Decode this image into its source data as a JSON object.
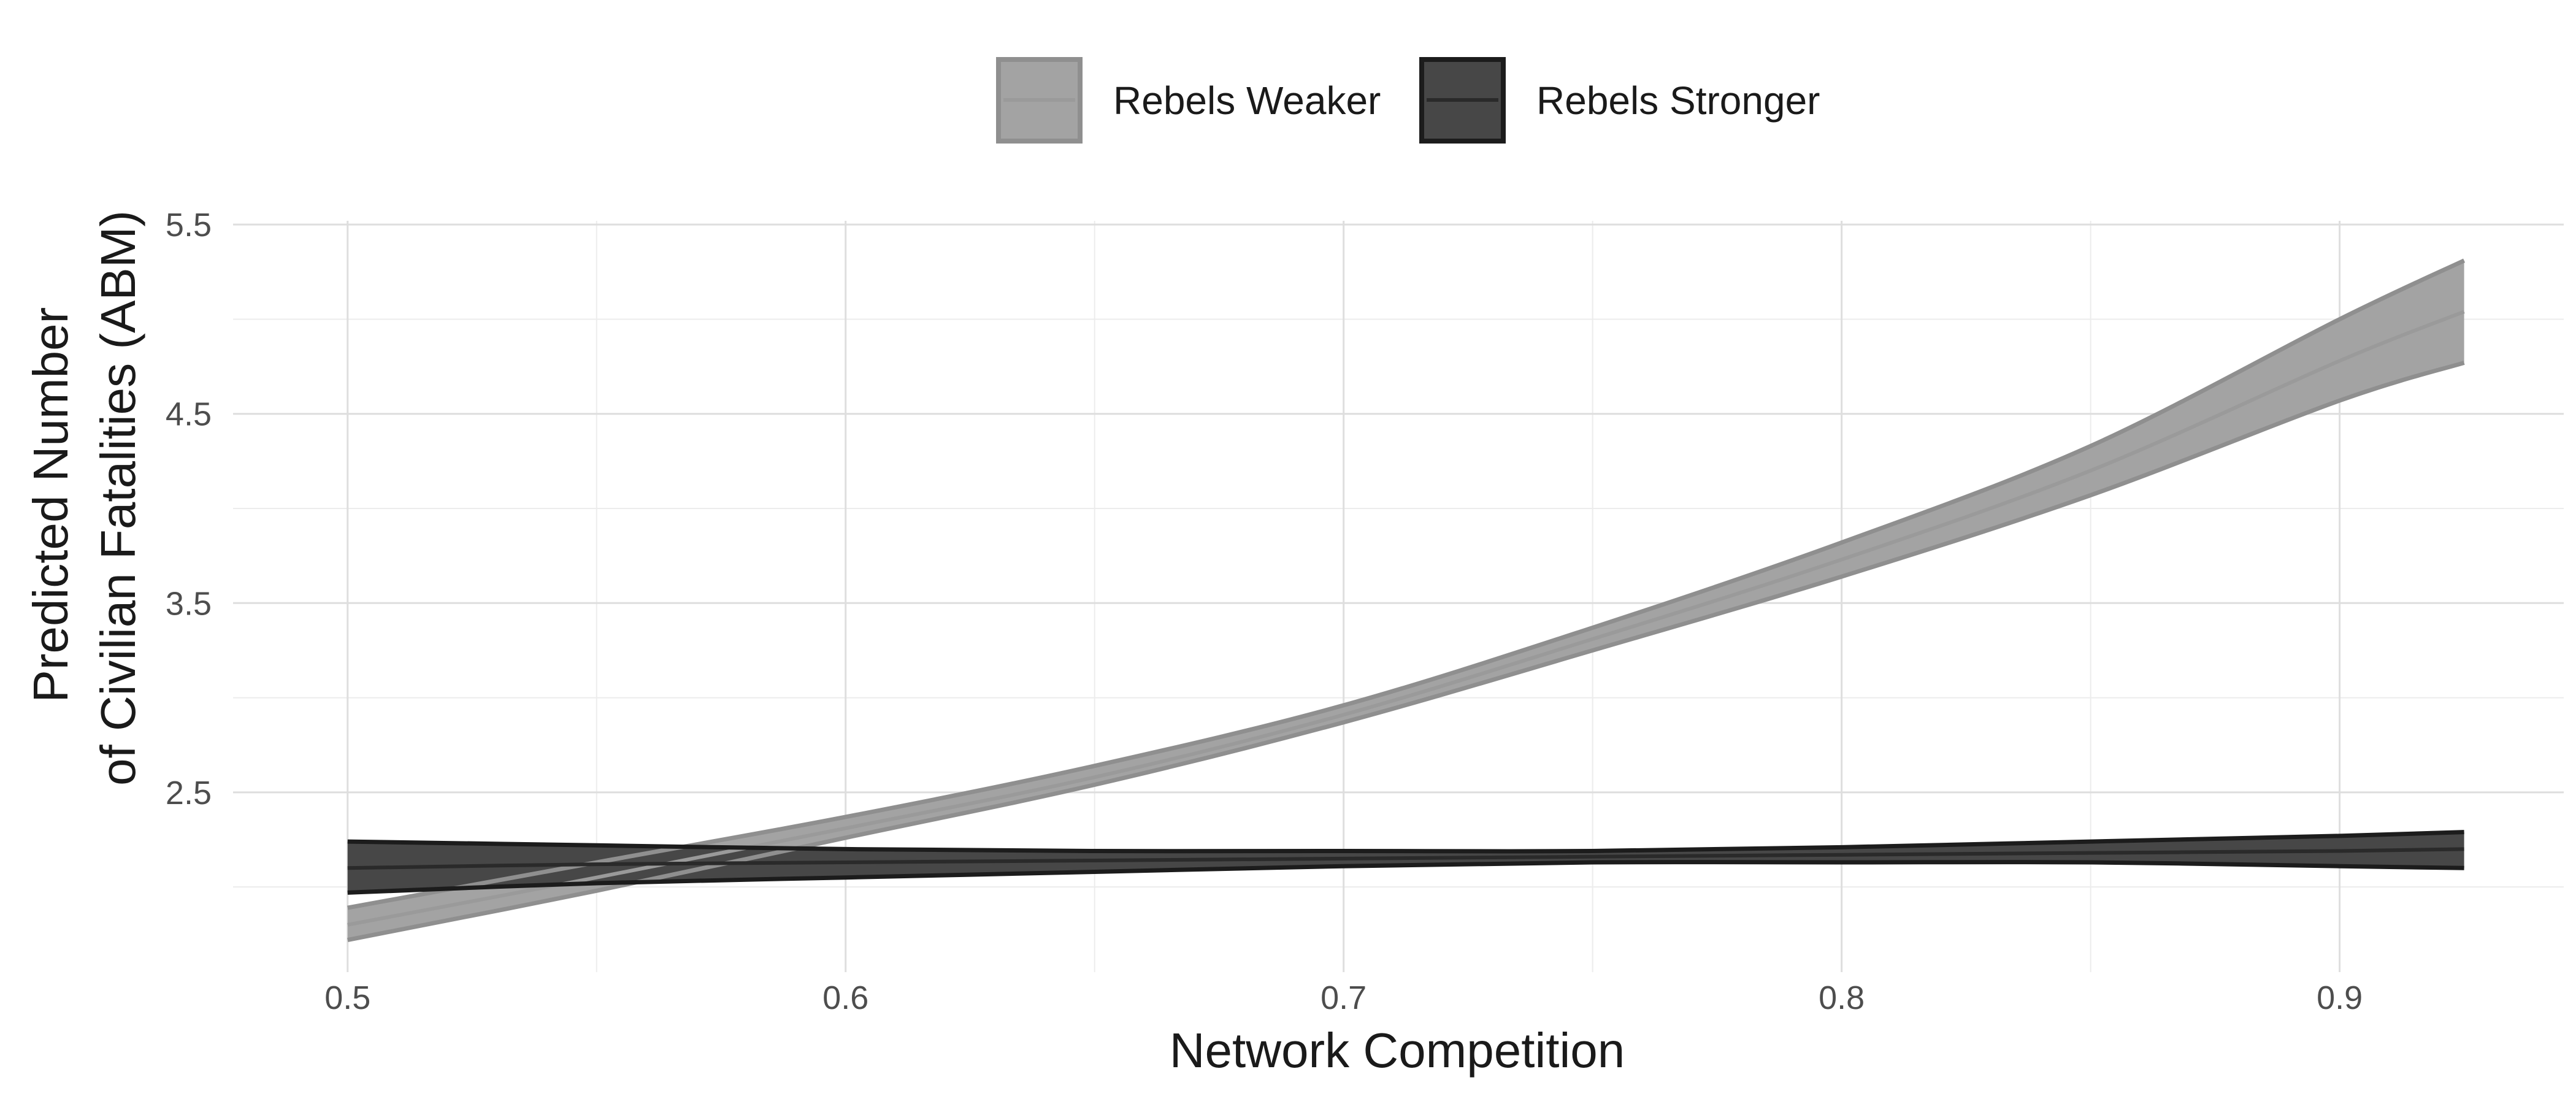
{
  "chart_data": {
    "type": "line",
    "title": "",
    "xlabel": "Network Competition",
    "ylabel": [
      "Predicted Number",
      "of Civilian Fatalities (ABM)"
    ],
    "xlim": [
      0.477,
      0.945
    ],
    "ylim": [
      1.55,
      5.52
    ],
    "x_ticks": [
      0.5,
      0.6,
      0.7,
      0.8,
      0.9
    ],
    "x_tick_labels": [
      "0.5",
      "0.6",
      "0.7",
      "0.8",
      "0.9"
    ],
    "x_minor_ticks": [
      0.55,
      0.65,
      0.75,
      0.85
    ],
    "y_ticks": [
      2.5,
      3.5,
      4.5,
      5.5
    ],
    "y_tick_labels": [
      "2.5",
      "3.5",
      "4.5",
      "5.5"
    ],
    "y_minor_ticks": [
      2.0,
      3.0,
      4.0,
      5.0
    ],
    "grid": true,
    "legend": {
      "position": "top"
    },
    "series": [
      {
        "name": "Rebels Weaker",
        "fill": "#a3a3a3",
        "line_color": "#9a9a9a",
        "edge_color": "#8f8f8f",
        "x": [
          0.5,
          0.55,
          0.6,
          0.65,
          0.7,
          0.75,
          0.8,
          0.85,
          0.9,
          0.925
        ],
        "y": [
          1.8,
          2.05,
          2.31,
          2.58,
          2.91,
          3.31,
          3.73,
          4.2,
          4.78,
          5.04
        ],
        "lower": [
          1.72,
          1.98,
          2.26,
          2.54,
          2.87,
          3.25,
          3.64,
          4.07,
          4.57,
          4.77
        ],
        "upper": [
          1.89,
          2.13,
          2.37,
          2.64,
          2.96,
          3.37,
          3.82,
          4.33,
          5.0,
          5.31
        ]
      },
      {
        "name": "Rebels Stronger",
        "fill": "#474747",
        "line_color": "#2a2a2a",
        "edge_color": "#1c1c1c",
        "x": [
          0.5,
          0.55,
          0.6,
          0.65,
          0.7,
          0.75,
          0.8,
          0.85,
          0.9,
          0.925
        ],
        "y": [
          2.1,
          2.12,
          2.13,
          2.14,
          2.15,
          2.16,
          2.17,
          2.18,
          2.19,
          2.2
        ],
        "lower": [
          1.97,
          2.02,
          2.05,
          2.08,
          2.11,
          2.13,
          2.13,
          2.13,
          2.11,
          2.1
        ],
        "upper": [
          2.24,
          2.22,
          2.2,
          2.19,
          2.19,
          2.19,
          2.21,
          2.24,
          2.27,
          2.29
        ]
      }
    ]
  }
}
